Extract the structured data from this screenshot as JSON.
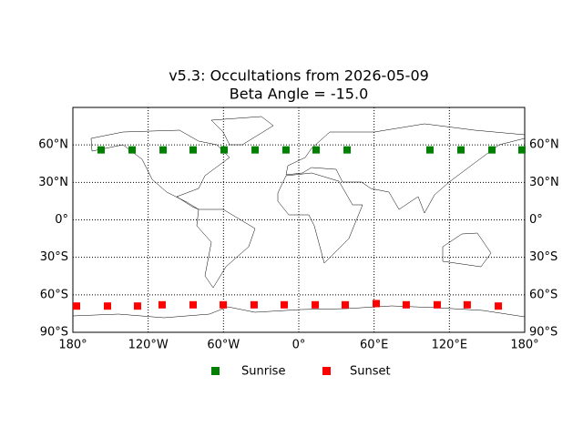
{
  "chart_data": {
    "type": "scatter",
    "title": "v5.3: Occultations from 2026-05-09",
    "subtitle": "Beta Angle = -15.0",
    "xlim": [
      -180,
      180
    ],
    "ylim": [
      -90,
      90
    ],
    "xticks": [
      {
        "value": -180,
        "label": "180°"
      },
      {
        "value": -120,
        "label": "120°W"
      },
      {
        "value": -60,
        "label": "60°W"
      },
      {
        "value": 0,
        "label": "0°"
      },
      {
        "value": 60,
        "label": "60°E"
      },
      {
        "value": 120,
        "label": "120°E"
      },
      {
        "value": 180,
        "label": "180°"
      }
    ],
    "yticks": [
      {
        "value": -90,
        "label": "90°S"
      },
      {
        "value": -60,
        "label": "60°S"
      },
      {
        "value": -30,
        "label": "30°S"
      },
      {
        "value": 0,
        "label": "0°"
      },
      {
        "value": 30,
        "label": "30°N"
      },
      {
        "value": 60,
        "label": "60°N"
      }
    ],
    "grid": true,
    "series": [
      {
        "name": "Sunrise",
        "color": "#008000",
        "x": [
          -157.5,
          -132.8,
          -108.1,
          -84.2,
          -59.5,
          -34.8,
          -10.2,
          13.8,
          38.5,
          104.5,
          129.2,
          153.9,
          177.8
        ],
        "values": [
          56,
          56,
          56,
          56,
          56,
          56,
          56,
          56,
          56,
          56,
          56,
          56,
          56
        ]
      },
      {
        "name": "Sunset",
        "color": "#ff0000",
        "x": [
          -177.1,
          -152.4,
          -128.5,
          -108.9,
          -84.2,
          -60.2,
          -35.6,
          -11.6,
          13.1,
          37.0,
          61.7,
          85.6,
          110.3,
          134.2,
          159.0
        ],
        "values": [
          -69,
          -69,
          -69,
          -68,
          -68,
          -68,
          -68,
          -68,
          -68,
          -68,
          -67,
          -68,
          -68,
          -68,
          -69
        ]
      }
    ]
  }
}
